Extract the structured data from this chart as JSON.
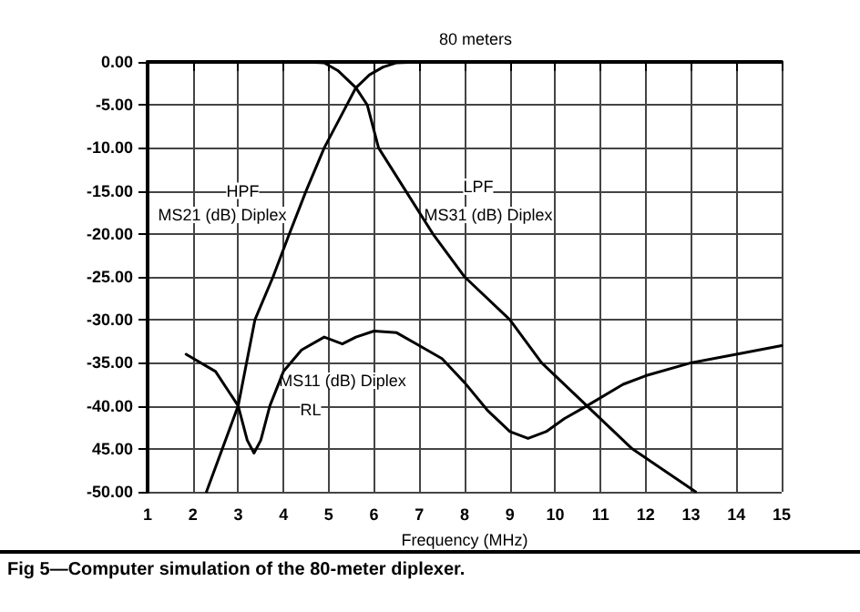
{
  "chart_data": {
    "type": "line",
    "title": "80 meters",
    "xlabel": "Frequency (MHz)",
    "annotations": [
      {
        "text": "HPF",
        "x": 3.1,
        "y": -15
      },
      "MS21 (dB) Diplex",
      {
        "text": "LPF",
        "x": 8.3,
        "y": -14.5
      },
      "MS31 (dB) Diplex",
      "MS11 (dB) Diplex",
      {
        "text": "RL",
        "x": 4.6,
        "y": -40.5
      },
      "Fig 5—Computer simulation of the 80-meter diplexer."
    ],
    "series": [
      {
        "color": "#000000",
        "x": [
          2.3,
          3,
          3.37,
          3.77,
          4.13,
          4.5,
          4.9,
          5.3,
          5.6,
          5.9,
          6.2,
          6.5,
          7,
          15
        ],
        "values": [
          -50,
          -40,
          -30,
          -25,
          -20,
          -15,
          -10,
          -6,
          -3,
          -1.5,
          -0.6,
          -0.1,
          0,
          0
        ]
      },
      {
        "color": "#000000",
        "x": [
          1,
          4.5,
          4.9,
          5.2,
          5.6,
          5.85,
          6.1,
          6.7,
          7.3,
          8,
          9,
          9.7,
          10.7,
          11.7,
          13.1
        ],
        "values": [
          0,
          0,
          -0.1,
          -1,
          -3,
          -5,
          -10,
          -15,
          -20,
          -25,
          -30,
          -35,
          -40,
          -45,
          -50
        ]
      },
      {
        "color": "#000000",
        "x": [
          1.85,
          2.5,
          3,
          3.2,
          3.35,
          3.5,
          3.7,
          4,
          4.4,
          4.9,
          5.3,
          5.6,
          6,
          6.5,
          7,
          7.5,
          8,
          8.5,
          9,
          9.4,
          9.8,
          10.2,
          10.7,
          11.5,
          12,
          13,
          14,
          15
        ],
        "values": [
          -34,
          -36,
          -40,
          -44,
          -45.5,
          -44,
          -40,
          -36,
          -33.5,
          -32,
          -32.8,
          -32,
          -31.3,
          -31.5,
          -33,
          -34.5,
          -37.3,
          -40.5,
          -43,
          -43.8,
          -43,
          -41.5,
          -40,
          -37.5,
          -36.5,
          -35,
          -34,
          -33
        ]
      }
    ],
    "xlim": [
      1,
      15
    ],
    "xticks": [
      1,
      2,
      3,
      4,
      5,
      6,
      7,
      8,
      9,
      10,
      11,
      12,
      13,
      14,
      15
    ],
    "ylim": [
      -50,
      0
    ],
    "yticks": [
      {
        "value": -50,
        "label": "-50.00"
      },
      {
        "value": -45,
        "label": "45.00"
      },
      {
        "value": -40,
        "label": "-40.00"
      },
      {
        "value": -35,
        "label": "-35.00"
      },
      {
        "value": -30,
        "label": "-30.00"
      },
      {
        "value": -25,
        "label": "-25.00"
      },
      {
        "value": -20,
        "label": "-20.00"
      },
      {
        "value": -15,
        "label": "-15.00"
      },
      {
        "value": -10,
        "label": "-10.00"
      },
      {
        "value": -5,
        "label": "-5.00"
      },
      {
        "value": 0,
        "label": "0.00"
      }
    ],
    "grid": true,
    "marker": "none",
    "line_style": "solid"
  }
}
